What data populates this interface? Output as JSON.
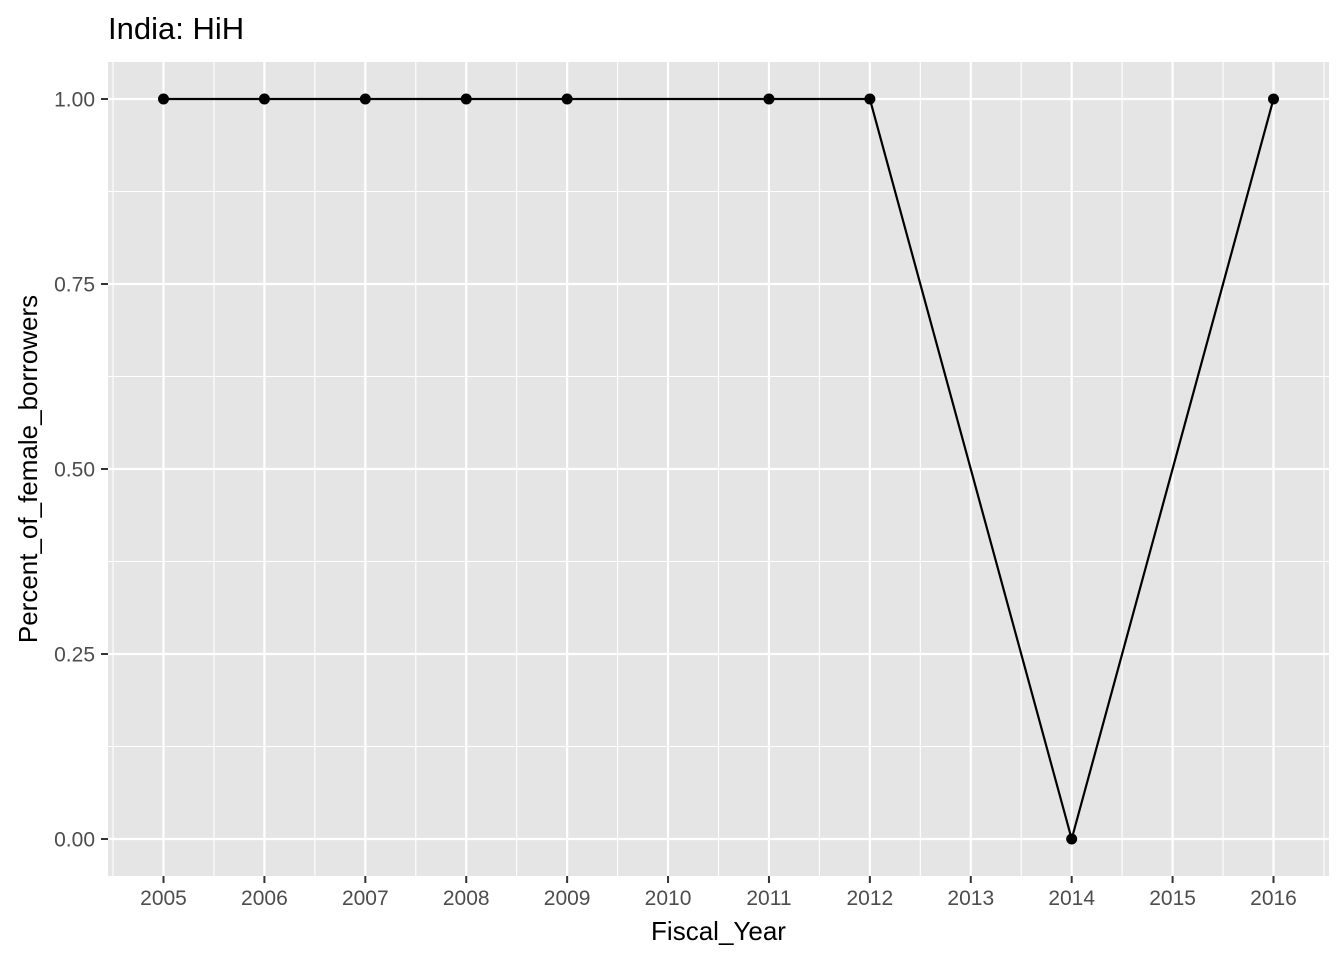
{
  "chart_data": {
    "type": "line",
    "title": "India:  HiH",
    "xlabel": "Fiscal_Year",
    "ylabel": "Percent_of_female_borrowers",
    "x": [
      2005,
      2006,
      2007,
      2008,
      2009,
      2011,
      2012,
      2014,
      2016
    ],
    "y": [
      1,
      1,
      1,
      1,
      1,
      1,
      1,
      0,
      1
    ],
    "xlim": [
      2004.45,
      2016.55
    ],
    "ylim": [
      -0.05,
      1.05
    ],
    "x_ticks": [
      "2005",
      "2006",
      "2007",
      "2008",
      "2009",
      "2010",
      "2011",
      "2012",
      "2013",
      "2014",
      "2015",
      "2016"
    ],
    "y_ticks": [
      "0.00",
      "0.25",
      "0.50",
      "0.75",
      "1.00"
    ],
    "grid": true,
    "colors": {
      "panel_background": "#e5e5e5",
      "grid_line": "#ffffff",
      "series": "#000000",
      "tick_text": "#4d4d4d",
      "tick_mark": "#333333"
    }
  }
}
